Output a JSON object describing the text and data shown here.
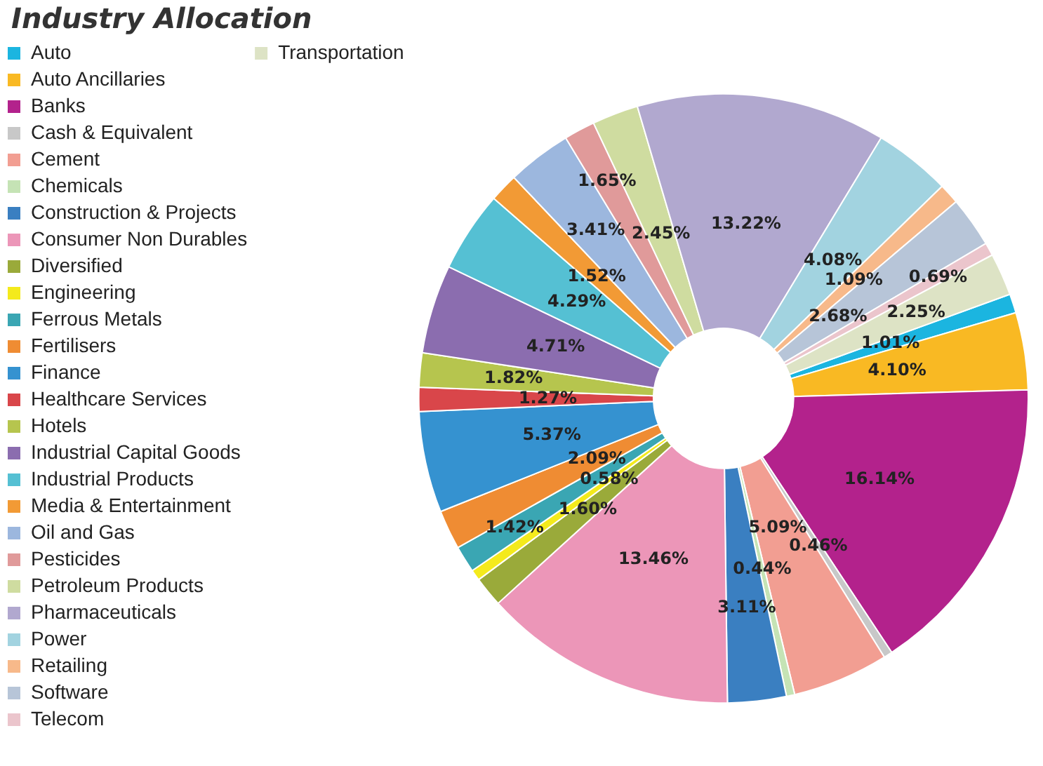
{
  "chart_data": {
    "type": "donut",
    "title": "Industry Allocation",
    "legend": "left",
    "categories": [
      "Auto",
      "Auto Ancillaries",
      "Banks",
      "Cash & Equivalent",
      "Cement",
      "Chemicals",
      "Construction & Projects",
      "Consumer Non Durables",
      "Diversified",
      "Engineering",
      "Ferrous Metals",
      "Fertilisers",
      "Finance",
      "Healthcare Services",
      "Hotels",
      "Industrial Capital Goods",
      "Industrial Products",
      "Media & Entertainment",
      "Oil and Gas",
      "Pesticides",
      "Petroleum Products",
      "Pharmaceuticals",
      "Power",
      "Retailing",
      "Software",
      "Telecom",
      "Transportation"
    ],
    "values": [
      1.01,
      4.1,
      16.14,
      0.46,
      5.09,
      0.44,
      3.11,
      13.46,
      1.6,
      0.58,
      1.42,
      2.09,
      5.37,
      1.27,
      1.82,
      4.71,
      4.29,
      1.52,
      3.41,
      1.65,
      2.45,
      13.22,
      4.08,
      1.09,
      2.68,
      0.69,
      2.25
    ],
    "value_labels": [
      "1.01%",
      "4.10%",
      "16.14%",
      "0.46%",
      "5.09%",
      "0.44%",
      "3.11%",
      "13.46%",
      "1.60%",
      "0.58%",
      "1.42%",
      "2.09%",
      "5.37%",
      "1.27%",
      "1.82%",
      "4.71%",
      "4.29%",
      "1.52%",
      "3.41%",
      "1.65%",
      "2.45%",
      "13.22%",
      "4.08%",
      "1.09%",
      "2.68%",
      "0.69%",
      "2.25%"
    ],
    "colors": [
      "#1bb5e0",
      "#f9b923",
      "#b3228c",
      "#c8c8c8",
      "#f29e92",
      "#c5e3b5",
      "#3a7fc1",
      "#ec96b8",
      "#9aaa3a",
      "#f4ea1c",
      "#3aa6b3",
      "#ef8c33",
      "#3592d0",
      "#d9464a",
      "#b6c54e",
      "#8b6daf",
      "#55c0d3",
      "#f29a35",
      "#9cb7de",
      "#e09a9a",
      "#cfdca0",
      "#b1a8cf",
      "#a2d3e0",
      "#f7b98a",
      "#b7c5d8",
      "#ebc5cc",
      "#dde3c5"
    ]
  }
}
